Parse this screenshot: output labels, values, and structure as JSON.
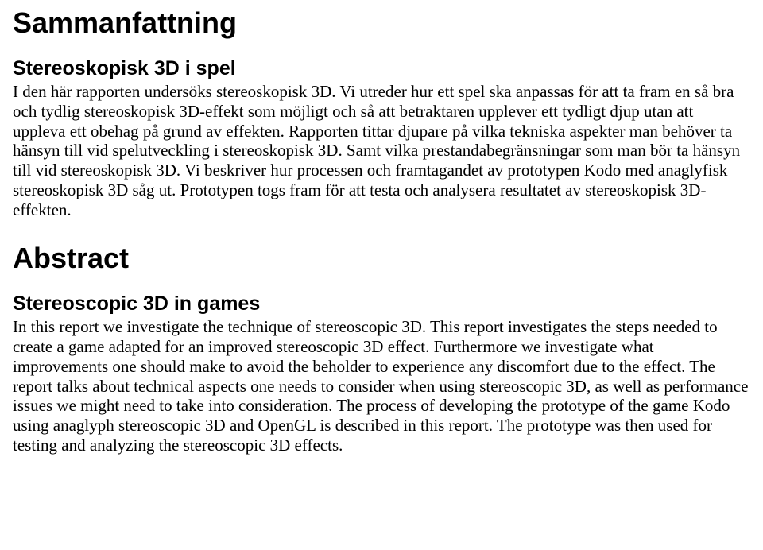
{
  "section1": {
    "heading": "Sammanfattning",
    "subheading": "Stereoskopisk 3D i spel",
    "paragraph": "I den här rapporten undersöks stereoskopisk 3D. Vi utreder hur ett spel ska anpassas för att ta fram en så bra och tydlig stereoskopisk 3D-effekt som möjligt och så att betraktaren upplever ett tydligt djup utan att uppleva ett obehag på grund av effekten. Rapporten tittar djupare på vilka tekniska aspekter man behöver ta hänsyn till vid spelutveckling i stereoskopisk 3D. Samt vilka prestandabegränsningar som man bör ta hänsyn till vid stereoskopisk 3D. Vi beskriver hur processen och framtagandet av prototypen Kodo med anaglyfisk stereoskopisk 3D såg ut. Prototypen togs fram för att testa och analysera resultatet av stereoskopisk 3D-effekten."
  },
  "section2": {
    "heading": "Abstract",
    "subheading": "Stereoscopic 3D in games",
    "paragraph": "In this report we investigate the technique of stereoscopic 3D. This report investigates the steps needed to create a game adapted for an improved stereoscopic 3D effect. Furthermore we investigate what improvements one should make to avoid the beholder to experience any discomfort due to the effect. The report talks about technical aspects one needs to consider when using stereoscopic 3D, as well as performance issues we might need to take into consideration. The process of developing the prototype of the game Kodo using anaglyph stereoscopic 3D and OpenGL is described in this report. The prototype was then used for testing and analyzing the stereoscopic 3D effects."
  }
}
